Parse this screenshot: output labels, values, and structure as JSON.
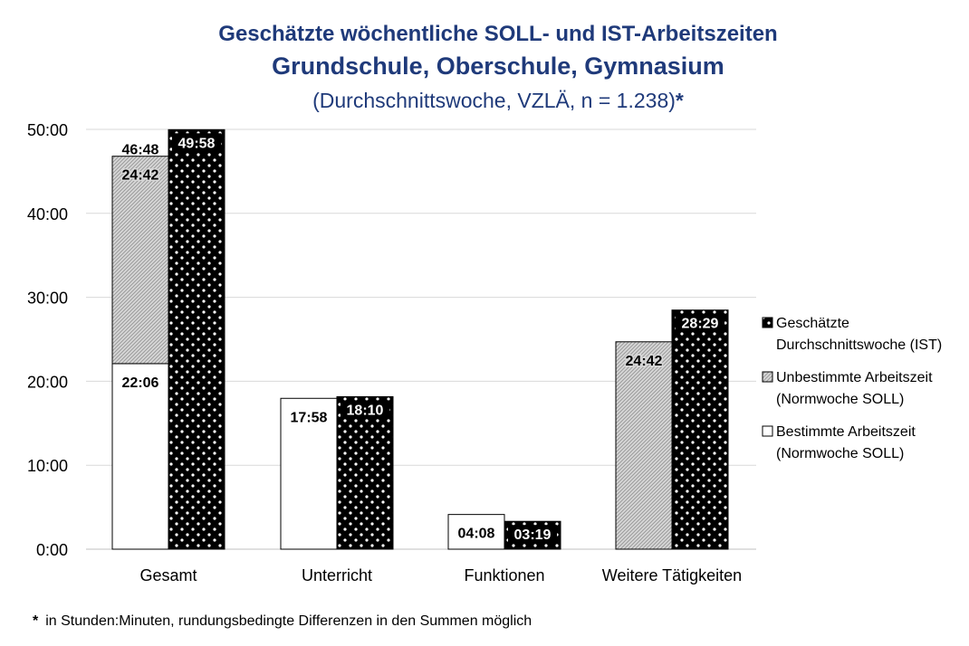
{
  "chart_data": {
    "type": "bar",
    "title": "Geschätzte wöchentliche SOLL- und IST-Arbeitszeiten",
    "subtitle": "Grundschule, Oberschule, Gymnasium",
    "subtitle2": "(Durchschnittswoche, VZLÄ, n = 1.238)",
    "title_asterisk": "*",
    "unit": "Stunden:Minuten",
    "categories": [
      "Gesamt",
      "Unterricht",
      "Funktionen",
      "Weitere Tätigkeiten"
    ],
    "ylim_minutes": [
      0,
      3000
    ],
    "y_ticks": [
      "0:00",
      "10:00",
      "20:00",
      "30:00",
      "40:00",
      "50:00"
    ],
    "grid": true,
    "legend_position": "right",
    "series": [
      {
        "name": "Bestimmte Arbeitszeit (Normwoche SOLL)",
        "legend_line1": "Bestimmte Arbeitszeit",
        "legend_line2": "(Normwoche SOLL)",
        "group": "soll",
        "pattern": "white",
        "values_minutes": [
          1326,
          1078,
          248,
          0
        ],
        "labels": [
          "22:06",
          "17:58",
          "04:08",
          ""
        ]
      },
      {
        "name": "Unbestimmte Arbeitszeit (Normwoche SOLL)",
        "legend_line1": "Unbestimmte Arbeitszeit",
        "legend_line2": "(Normwoche SOLL)",
        "group": "soll",
        "pattern": "hatch",
        "values_minutes": [
          1482,
          0,
          0,
          1482
        ],
        "labels": [
          "24:42",
          "",
          "",
          "24:42"
        ]
      },
      {
        "name": "Geschätzte Durchschnittswoche (IST)",
        "legend_line1": "Geschätzte",
        "legend_line2": "Durchschnittswoche (IST)",
        "group": "ist",
        "pattern": "dots",
        "values_minutes": [
          2998,
          1090,
          199,
          1709
        ],
        "labels": [
          "49:58",
          "18:10",
          "03:19",
          "28:29"
        ]
      }
    ],
    "soll_totals": [
      "46:48",
      "",
      "",
      ""
    ]
  },
  "footnote": {
    "marker": "*",
    "text": "in Stunden:Minuten, rundungsbedingte Differenzen in den Summen möglich"
  }
}
